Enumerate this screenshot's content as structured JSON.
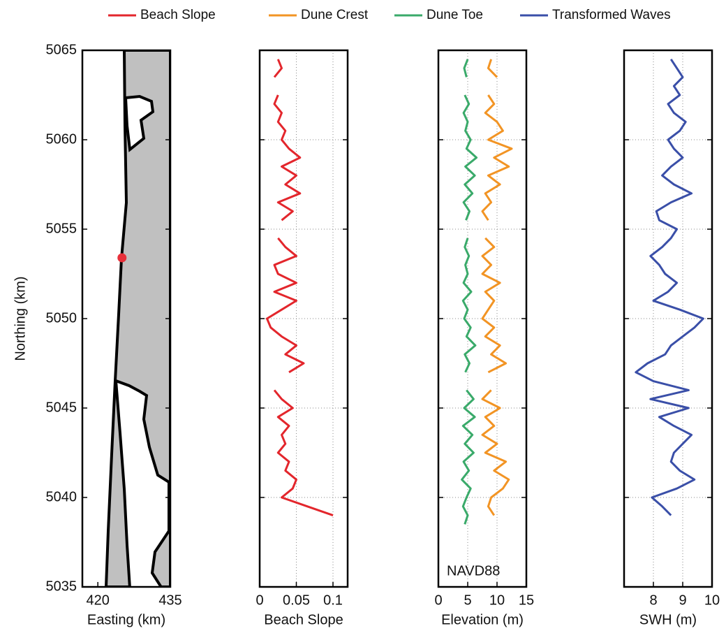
{
  "chart_data": [
    {
      "type": "map",
      "xlabel": "Easting (km)",
      "ylabel": "Northing (km)",
      "xlim": [
        416.8,
        435
      ],
      "xticks": [
        420,
        435
      ],
      "ylim": [
        5035,
        5065
      ],
      "yticks": [
        5035,
        5040,
        5045,
        5050,
        5055,
        5060,
        5065
      ],
      "points": {
        "x": [
          425
        ],
        "y": [
          5053.4
        ],
        "color": "#e8303a"
      }
    },
    {
      "type": "line",
      "xlabel": "Beach Slope",
      "xlim": [
        0,
        0.12
      ],
      "xticks": [
        0,
        0.05,
        0.1
      ],
      "ylim": [
        5035,
        5065
      ],
      "yticks": [
        5035,
        5040,
        5045,
        5050,
        5055,
        5060,
        5065
      ],
      "grid": true,
      "y": [
        5038.5,
        5039,
        5039.5,
        5040,
        5040.5,
        5041,
        5041.5,
        5042,
        5042.5,
        5043,
        5043.5,
        5044,
        5044.5,
        5045,
        5045.5,
        5046,
        5046.5,
        5047,
        5047.5,
        5048,
        5048.5,
        5049,
        5049.5,
        5050,
        5050.5,
        5051,
        5051.5,
        5052,
        5052.5,
        5053,
        5053.5,
        5054,
        5054.5,
        5055,
        5055.5,
        5056,
        5056.5,
        5057,
        5057.5,
        5058,
        5058.5,
        5059,
        5059.5,
        5060,
        5060.5,
        5061,
        5061.5,
        5062,
        5062.5,
        5063,
        5063.5,
        5064,
        5064.5
      ],
      "series": [
        {
          "name": "Beach Slope",
          "color": "#e3262c",
          "values": [
            null,
            0.1,
            0.065,
            0.03,
            0.045,
            0.05,
            0.035,
            0.04,
            0.025,
            0.035,
            0.03,
            0.04,
            0.025,
            0.045,
            0.03,
            0.02,
            null,
            0.04,
            0.06,
            0.035,
            0.05,
            0.03,
            0.015,
            0.01,
            0.03,
            0.05,
            0.02,
            0.05,
            0.025,
            0.02,
            0.05,
            0.035,
            0.025,
            null,
            0.03,
            0.045,
            0.025,
            0.055,
            0.035,
            0.05,
            0.03,
            0.055,
            0.04,
            0.03,
            0.035,
            0.025,
            0.03,
            0.02,
            0.025,
            null,
            0.02,
            0.03,
            0.025
          ]
        }
      ]
    },
    {
      "type": "line",
      "xlabel": "Elevation (m)",
      "xlim": [
        0,
        15
      ],
      "xticks": [
        0,
        5,
        10,
        15
      ],
      "ylim": [
        5035,
        5065
      ],
      "yticks": [
        5035,
        5040,
        5045,
        5050,
        5055,
        5060,
        5065
      ],
      "grid": true,
      "annotation": "NAVD88",
      "y": [
        5038.5,
        5039,
        5039.5,
        5040,
        5040.5,
        5041,
        5041.5,
        5042,
        5042.5,
        5043,
        5043.5,
        5044,
        5044.5,
        5045,
        5045.5,
        5046,
        5046.5,
        5047,
        5047.5,
        5048,
        5048.5,
        5049,
        5049.5,
        5050,
        5050.5,
        5051,
        5051.5,
        5052,
        5052.5,
        5053,
        5053.5,
        5054,
        5054.5,
        5055,
        5055.5,
        5056,
        5056.5,
        5057,
        5057.5,
        5058,
        5058.5,
        5059,
        5059.5,
        5060,
        5060.5,
        5061,
        5061.5,
        5062,
        5062.5,
        5063,
        5063.5,
        5064,
        5064.5
      ],
      "series": [
        {
          "name": "Dune Crest",
          "color": "#f29424",
          "values": [
            null,
            9.5,
            8.5,
            9.0,
            11.0,
            12.0,
            9.5,
            11.5,
            8.0,
            10.0,
            7.5,
            9.5,
            8.0,
            10.5,
            7.5,
            9.0,
            null,
            8.5,
            11.5,
            9.0,
            10.5,
            8.0,
            9.5,
            7.5,
            8.5,
            9.5,
            8.0,
            10.5,
            7.5,
            9.0,
            7.5,
            9.5,
            8.0,
            null,
            8.5,
            7.5,
            9.0,
            8.0,
            10.5,
            8.5,
            12.0,
            9.5,
            12.5,
            8.5,
            11.0,
            10.0,
            8.0,
            9.5,
            8.5,
            null,
            10.0,
            8.5,
            9.0
          ]
        },
        {
          "name": "Dune Toe",
          "color": "#3aaa6a",
          "values": [
            4.5,
            5.0,
            4.2,
            4.8,
            5.5,
            4.0,
            5.2,
            4.3,
            6.0,
            4.5,
            5.8,
            4.2,
            6.2,
            4.4,
            6.0,
            4.8,
            null,
            4.6,
            5.3,
            4.5,
            6.3,
            4.8,
            5.5,
            4.4,
            5.0,
            4.2,
            5.6,
            4.3,
            5.0,
            4.6,
            5.2,
            4.5,
            5.0,
            null,
            4.7,
            5.3,
            4.3,
            5.8,
            4.5,
            6.2,
            4.6,
            6.5,
            4.8,
            5.5,
            4.6,
            5.0,
            4.3,
            5.2,
            4.5,
            null,
            4.8,
            4.4,
            5.0
          ]
        }
      ]
    },
    {
      "type": "line",
      "xlabel": "SWH (m)",
      "xlim": [
        7,
        10
      ],
      "xticks": [
        8,
        9,
        10
      ],
      "ylim": [
        5035,
        5065
      ],
      "yticks": [
        5035,
        5040,
        5045,
        5050,
        5055,
        5060,
        5065
      ],
      "grid": true,
      "y": [
        5038.5,
        5039,
        5039.5,
        5040,
        5040.5,
        5041,
        5041.5,
        5042,
        5042.5,
        5043,
        5043.5,
        5044,
        5044.5,
        5045,
        5045.5,
        5046,
        5046.5,
        5047,
        5047.5,
        5048,
        5048.5,
        5049,
        5049.5,
        5050,
        5050.5,
        5051,
        5051.5,
        5052,
        5052.5,
        5053,
        5053.5,
        5054,
        5054.5,
        5055,
        5055.5,
        5056,
        5056.5,
        5057,
        5057.5,
        5058,
        5058.5,
        5059,
        5059.5,
        5060,
        5060.5,
        5061,
        5061.5,
        5062,
        5062.5,
        5063,
        5063.5,
        5064,
        5064.5
      ],
      "series": [
        {
          "name": "Transformed Waves",
          "color": "#3a4fa8",
          "values": [
            null,
            8.6,
            8.3,
            7.95,
            8.8,
            9.4,
            8.9,
            8.6,
            8.7,
            9.0,
            9.3,
            8.7,
            8.2,
            9.2,
            7.9,
            9.2,
            8.0,
            7.4,
            7.8,
            8.4,
            8.6,
            9.0,
            9.4,
            9.7,
            8.9,
            8.0,
            8.5,
            8.8,
            8.4,
            8.2,
            7.9,
            8.3,
            8.6,
            8.8,
            8.2,
            8.1,
            8.6,
            9.3,
            8.7,
            8.3,
            8.6,
            9.0,
            8.7,
            8.5,
            8.9,
            9.1,
            8.7,
            8.5,
            8.9,
            8.7,
            9.0,
            8.8,
            8.6
          ]
        }
      ]
    }
  ]
}
